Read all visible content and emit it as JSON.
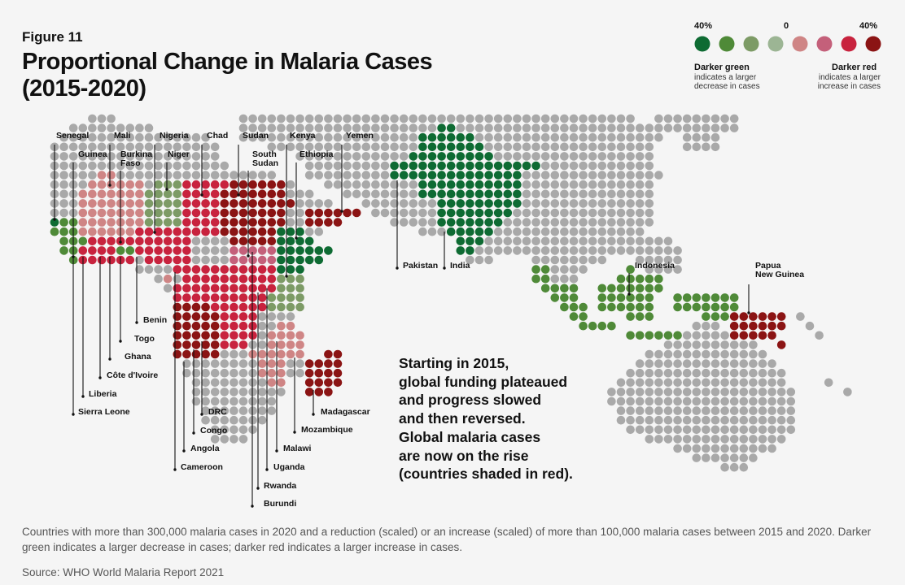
{
  "figure_label": "Figure 11",
  "title_line1": "Proportional Change in Malaria Cases",
  "title_line2": "(2015-2020)",
  "legend": {
    "scale_left": "40%",
    "scale_mid": "0",
    "scale_right": "40%",
    "colors": [
      "#0e6b33",
      "#4f8a38",
      "#7d9b66",
      "#9cb594",
      "#cf8585",
      "#c4607a",
      "#c8233e",
      "#8b1414"
    ],
    "green_head": "Darker green",
    "green_sub": "indicates a larger decrease in cases",
    "red_head": "Darker red",
    "red_sub": "indicates a larger increase in cases"
  },
  "country_labels": {
    "senegal": "Senegal",
    "guinea": "Guinea",
    "mali": "Mali",
    "burkina": "Burkina\nFaso",
    "nigeria": "Nigeria",
    "niger": "Niger",
    "chad": "Chad",
    "sudan": "Sudan",
    "south_sudan": "South\nSudan",
    "kenya": "Kenya",
    "ethiopia": "Ethiopia",
    "yemen": "Yemen",
    "benin": "Benin",
    "togo": "Togo",
    "ghana": "Ghana",
    "cote": "Côte d'Ivoire",
    "liberia": "Liberia",
    "sierra": "Sierra Leone",
    "drc": "DRC",
    "congo": "Congo",
    "angola": "Angola",
    "cameroon": "Cameroon",
    "burundi": "Burundi",
    "rwanda": "Rwanda",
    "uganda": "Uganda",
    "malawi": "Malawi",
    "mozambique": "Mozambique",
    "madagascar": "Madagascar",
    "pakistan": "Pakistan",
    "india": "India",
    "indonesia": "Indonesia",
    "png": "Papua\nNew Guinea"
  },
  "note_lines": [
    "Starting in 2015,",
    "global funding plateaued",
    "and progress slowed",
    "and then reversed.",
    "Global malaria cases",
    "are now on the rise",
    "(countries shaded in red)."
  ],
  "caption": "Countries with more than 300,000 malaria cases in 2020 and a reduction (scaled) or an increase (scaled) of more than 100,000 malaria cases between 2015 and 2020. Darker green indicates a larger decrease in cases; darker red indicates a larger increase in cases.",
  "source": "Source: WHO World Malaria Report 2021"
}
